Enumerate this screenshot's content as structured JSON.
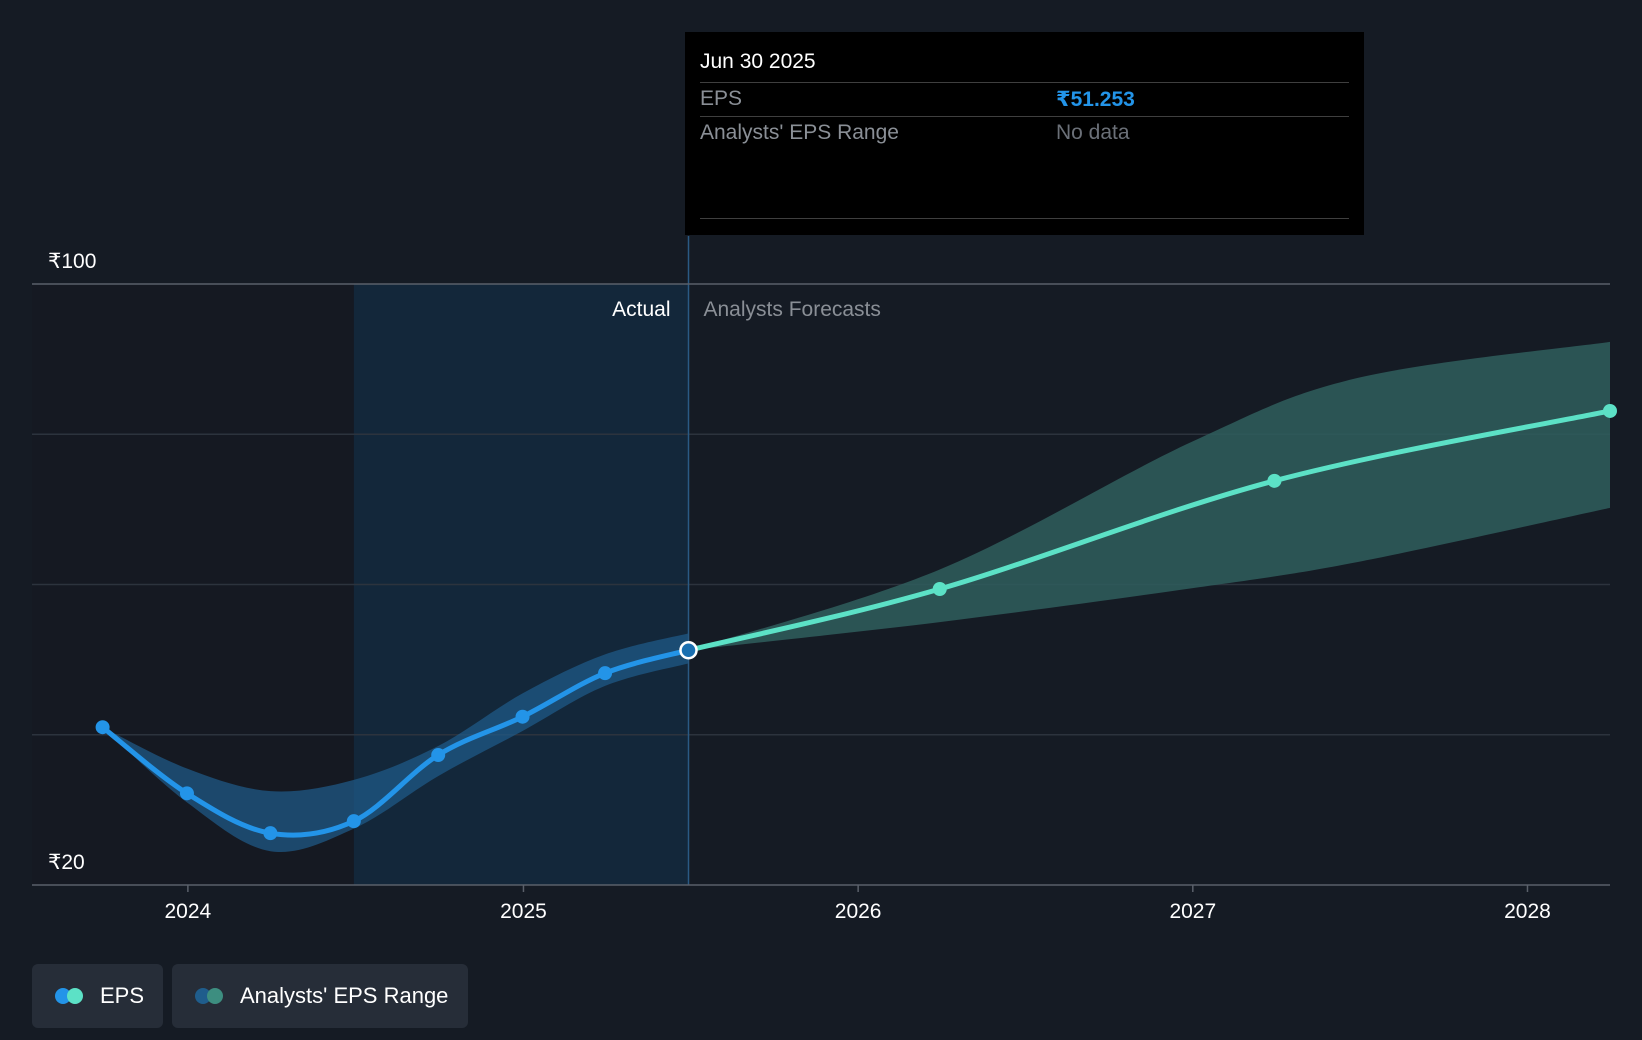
{
  "chart_data": {
    "type": "line",
    "y_tick_labels": [
      {
        "value": 100,
        "label": "₹100"
      },
      {
        "value": 20,
        "label": "₹20"
      }
    ],
    "ylim": [
      20,
      100
    ],
    "y_gridlines": [
      40,
      60,
      80
    ],
    "x_ticks": [
      "2024",
      "2025",
      "2026",
      "2027",
      "2028"
    ],
    "xlim": [
      "2023-07-15",
      "2028-03-31"
    ],
    "grid": true,
    "regions": {
      "past_start": "2024-06-30",
      "divider": "2025-06-30",
      "actual_label": "Actual",
      "forecast_label": "Analysts Forecasts"
    },
    "series": [
      {
        "name": "EPS",
        "color": "#2394e8",
        "points": [
          {
            "x": "2023-09-30",
            "y": 41.0
          },
          {
            "x": "2023-12-31",
            "y": 32.2
          },
          {
            "x": "2024-03-31",
            "y": 26.9
          },
          {
            "x": "2024-06-30",
            "y": 28.5
          },
          {
            "x": "2024-09-30",
            "y": 37.3
          },
          {
            "x": "2024-12-31",
            "y": 42.4
          },
          {
            "x": "2025-03-31",
            "y": 48.2
          },
          {
            "x": "2025-06-30",
            "y": 51.253
          }
        ]
      },
      {
        "name": "EPS",
        "color": "#5ce1c6",
        "points": [
          {
            "x": "2025-06-30",
            "y": 51.253
          },
          {
            "x": "2026-03-31",
            "y": 59.4
          },
          {
            "x": "2027-03-31",
            "y": 73.8
          },
          {
            "x": "2028-03-31",
            "y": 83.1
          }
        ]
      }
    ],
    "actual_range": {
      "name": "Analysts' EPS Range",
      "upper": [
        {
          "x": "2023-09-30",
          "y": 41.0
        },
        {
          "x": "2023-12-31",
          "y": 35.5
        },
        {
          "x": "2024-03-31",
          "y": 32.5
        },
        {
          "x": "2024-06-30",
          "y": 34.0
        },
        {
          "x": "2024-09-30",
          "y": 38.5
        },
        {
          "x": "2024-12-31",
          "y": 45.5
        },
        {
          "x": "2025-03-31",
          "y": 50.7
        },
        {
          "x": "2025-06-30",
          "y": 53.5
        }
      ],
      "lower": [
        {
          "x": "2023-09-30",
          "y": 41.0
        },
        {
          "x": "2023-12-31",
          "y": 31.0
        },
        {
          "x": "2024-03-31",
          "y": 24.5
        },
        {
          "x": "2024-06-30",
          "y": 27.5
        },
        {
          "x": "2024-09-30",
          "y": 34.5
        },
        {
          "x": "2024-12-31",
          "y": 40.5
        },
        {
          "x": "2025-03-31",
          "y": 46.5
        },
        {
          "x": "2025-06-30",
          "y": 49.5
        }
      ]
    },
    "forecast_range": {
      "name": "Analysts' EPS Range",
      "upper": [
        {
          "x": "2025-06-30",
          "y": 51.253
        },
        {
          "x": "2026-03-31",
          "y": 62.0
        },
        {
          "x": "2026-12-31",
          "y": 79.0
        },
        {
          "x": "2027-06-30",
          "y": 87.5
        },
        {
          "x": "2028-03-31",
          "y": 92.3
        }
      ],
      "lower": [
        {
          "x": "2025-06-30",
          "y": 51.253
        },
        {
          "x": "2026-03-31",
          "y": 55.0
        },
        {
          "x": "2026-12-31",
          "y": 59.5
        },
        {
          "x": "2027-06-30",
          "y": 63.0
        },
        {
          "x": "2028-03-31",
          "y": 70.2
        }
      ]
    }
  },
  "tooltip": {
    "date": "Jun 30 2025",
    "rows": [
      {
        "label": "EPS",
        "value": "₹51.253",
        "value_color": "#2394e8"
      },
      {
        "label": "Analysts' EPS Range",
        "value": "No data",
        "value_color": "#6b7078"
      }
    ]
  },
  "legend": [
    {
      "label": "EPS",
      "colors": [
        "#2394e8",
        "#5ce1c6"
      ]
    },
    {
      "label": "Analysts' EPS Range",
      "colors": [
        "#1f5d8c",
        "#3d8e80"
      ]
    }
  ]
}
